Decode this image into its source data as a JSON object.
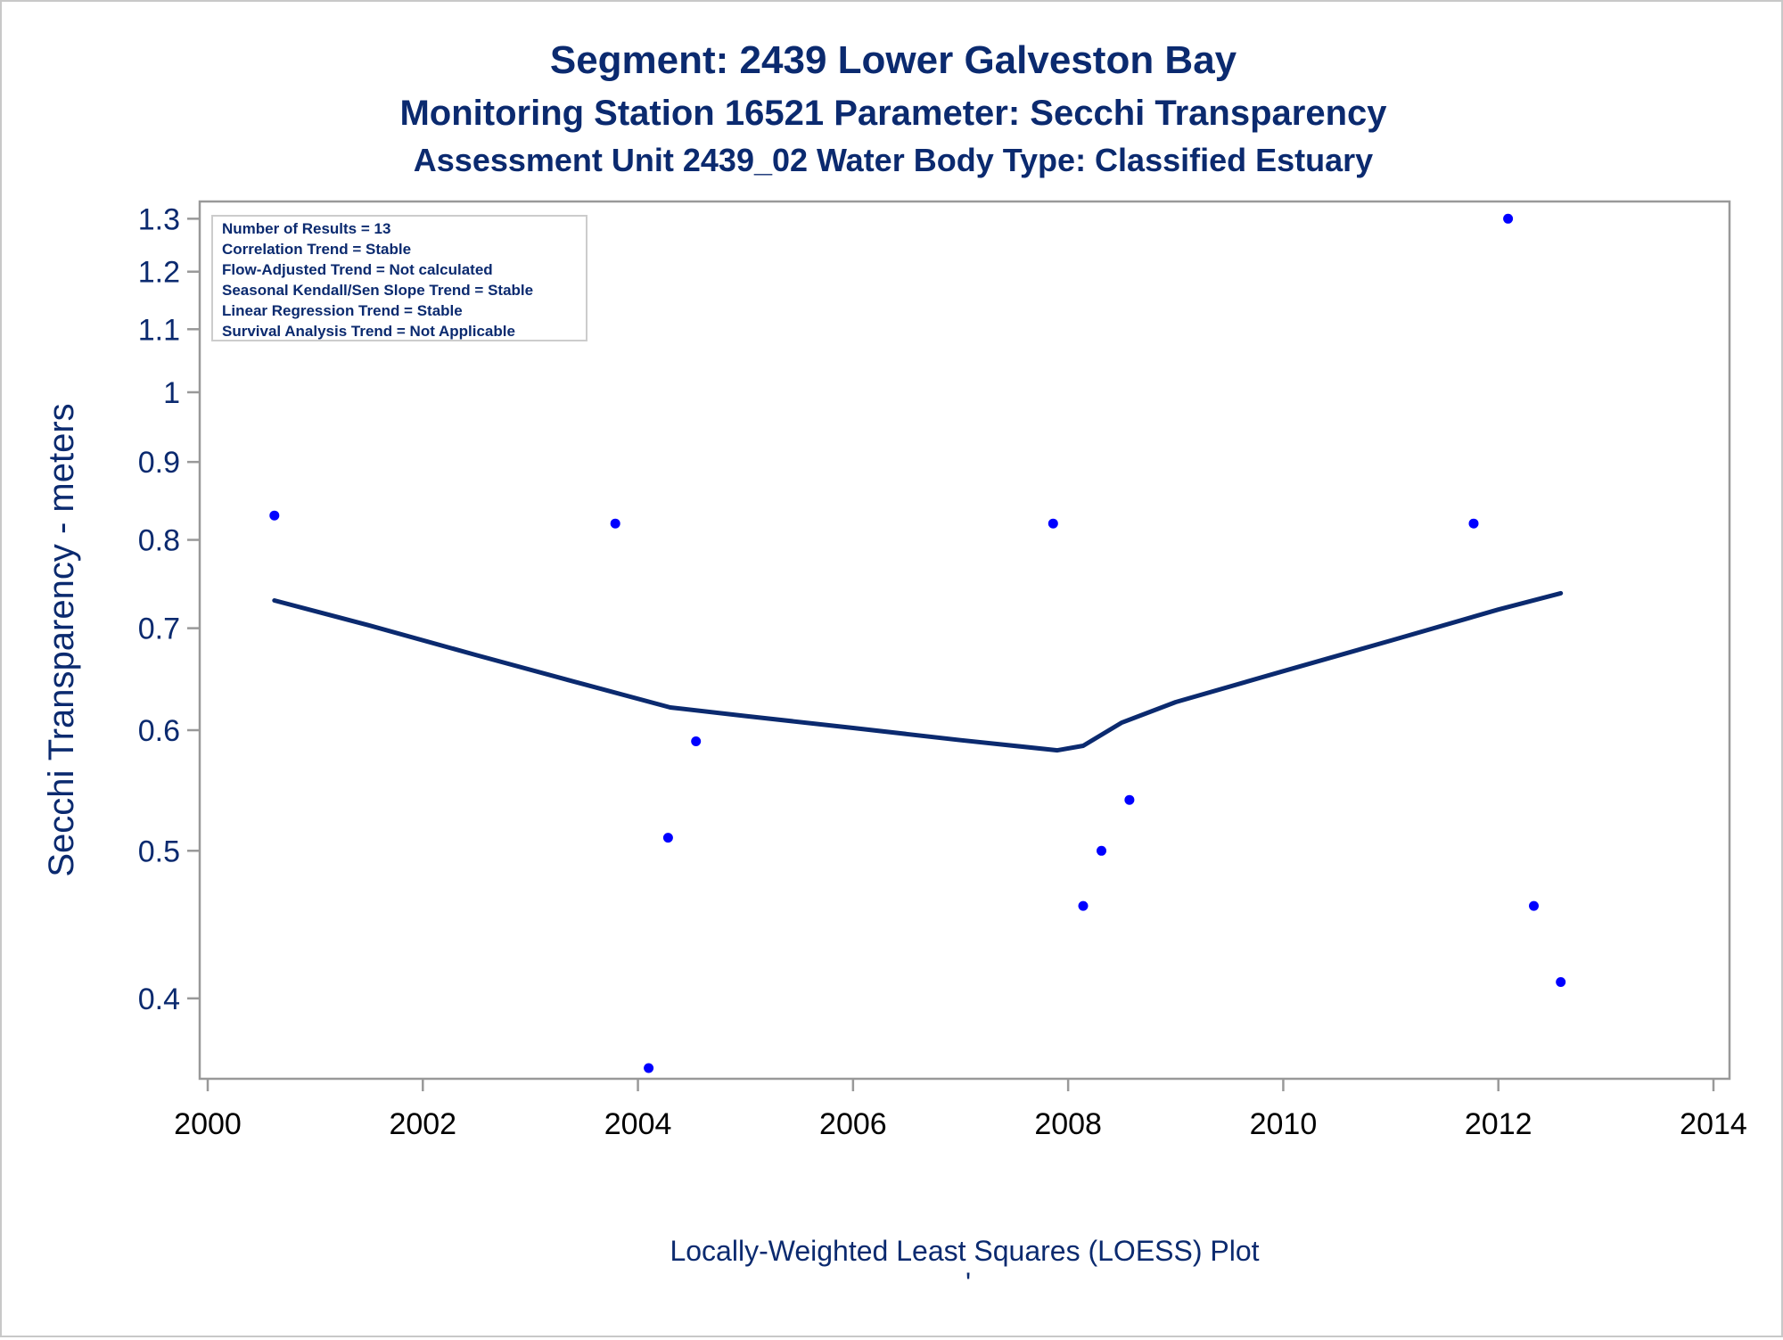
{
  "titles": {
    "line1": "Segment: 2439  Lower Galveston Bay",
    "line2": "Monitoring Station 16521 Parameter: Secchi Transparency",
    "line3": "Assessment Unit 2439_02   Water Body Type: Classified Estuary"
  },
  "inset_lines": [
    "Number of Results = 13",
    "Correlation Trend = Stable",
    "Flow-Adjusted Trend = Not calculated",
    "Seasonal Kendall/Sen Slope Trend = Stable",
    "Linear Regression Trend = Stable",
    "Survival Analysis Trend = Not Applicable"
  ],
  "footnote": "Locally-Weighted Least Squares (LOESS) Plot",
  "footnote_mark": "'",
  "colors": {
    "text": "#0b2a6f",
    "points": "#0000ff",
    "loess": "#0b2a6f",
    "frame": "#999999"
  },
  "chart_data": {
    "type": "scatter",
    "ylabel": "Secchi Transparency - meters",
    "xlabel": "",
    "y_scale": "log",
    "xlim": [
      2000,
      2014
    ],
    "ylim": [
      0.36,
      1.32
    ],
    "x_ticks": [
      "2000",
      "2002",
      "2004",
      "2006",
      "2008",
      "2010",
      "2012",
      "2014"
    ],
    "y_ticks": [
      "0.4",
      "0.5",
      "0.6",
      "0.7",
      "0.8",
      "0.9",
      "1",
      "1.1",
      "1.2",
      "1.3"
    ],
    "grid": false,
    "series": [
      {
        "type": "scatter",
        "points": [
          {
            "x": 2000.62,
            "y": 0.83
          },
          {
            "x": 2003.79,
            "y": 0.82
          },
          {
            "x": 2004.1,
            "y": 0.36
          },
          {
            "x": 2004.28,
            "y": 0.51
          },
          {
            "x": 2004.54,
            "y": 0.59
          },
          {
            "x": 2007.86,
            "y": 0.82
          },
          {
            "x": 2008.14,
            "y": 0.46
          },
          {
            "x": 2008.31,
            "y": 0.5
          },
          {
            "x": 2008.57,
            "y": 0.54
          },
          {
            "x": 2011.77,
            "y": 0.82
          },
          {
            "x": 2012.09,
            "y": 1.3
          },
          {
            "x": 2012.33,
            "y": 0.46
          },
          {
            "x": 2012.58,
            "y": 0.41
          }
        ]
      },
      {
        "type": "line",
        "points": [
          {
            "x": 2000.62,
            "y": 0.73
          },
          {
            "x": 2001.5,
            "y": 0.703
          },
          {
            "x": 2002.5,
            "y": 0.672
          },
          {
            "x": 2003.5,
            "y": 0.643
          },
          {
            "x": 2004.3,
            "y": 0.621
          },
          {
            "x": 2005.0,
            "y": 0.613
          },
          {
            "x": 2006.0,
            "y": 0.602
          },
          {
            "x": 2007.0,
            "y": 0.591
          },
          {
            "x": 2007.9,
            "y": 0.582
          },
          {
            "x": 2008.14,
            "y": 0.586
          },
          {
            "x": 2008.5,
            "y": 0.607
          },
          {
            "x": 2009.0,
            "y": 0.626
          },
          {
            "x": 2010.0,
            "y": 0.656
          },
          {
            "x": 2011.0,
            "y": 0.687
          },
          {
            "x": 2012.0,
            "y": 0.72
          },
          {
            "x": 2012.58,
            "y": 0.738
          }
        ]
      }
    ]
  }
}
